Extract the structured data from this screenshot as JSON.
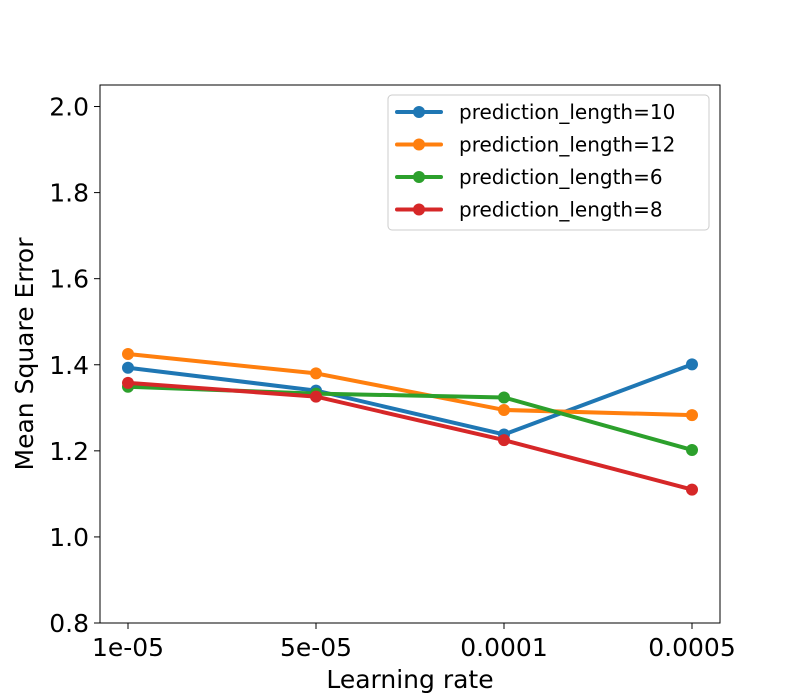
{
  "chart_data": {
    "type": "line",
    "title": "",
    "xlabel": "Learning rate",
    "ylabel": "Mean Square Error",
    "categories": [
      "1e-05",
      "5e-05",
      "0.0001",
      "0.0005"
    ],
    "ylim": [
      0.8,
      2.05
    ],
    "yticks": [
      "0.8",
      "1.0",
      "1.2",
      "1.4",
      "1.6",
      "1.8",
      "2.0"
    ],
    "grid": false,
    "legend_position": "top-right",
    "series": [
      {
        "name": "prediction_length=10",
        "color": "#1f77b4",
        "values": [
          1.393,
          1.34,
          1.238,
          1.401
        ]
      },
      {
        "name": "prediction_length=12",
        "color": "#ff7f0e",
        "values": [
          1.425,
          1.38,
          1.295,
          1.283
        ]
      },
      {
        "name": "prediction_length=6",
        "color": "#2ca02c",
        "values": [
          1.349,
          1.333,
          1.324,
          1.202
        ]
      },
      {
        "name": "prediction_length=8",
        "color": "#d62728",
        "values": [
          1.358,
          1.326,
          1.225,
          1.11
        ]
      }
    ]
  }
}
